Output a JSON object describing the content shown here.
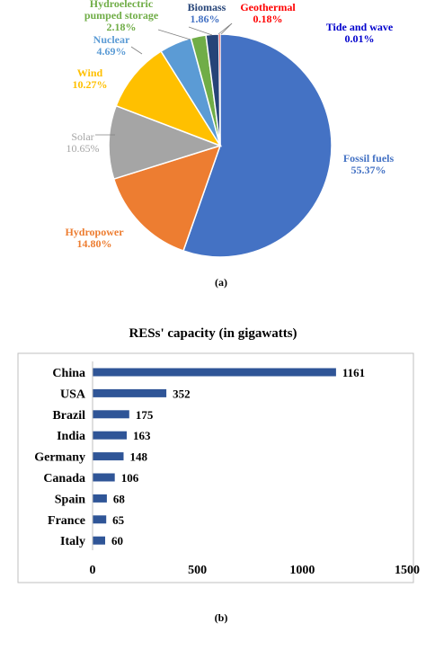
{
  "charts": [
    {
      "panel_label": "(a)",
      "chart_data": {
        "type": "pie",
        "title": "",
        "slices": [
          {
            "name": "Fossil fuels",
            "value": 55.37,
            "label": "55.37%",
            "color": "#4472c4"
          },
          {
            "name": "Hydropower",
            "value": 14.8,
            "label": "14.80%",
            "color": "#ed7d31"
          },
          {
            "name": "Solar",
            "value": 10.65,
            "label": "10.65%",
            "color": "#a5a5a5"
          },
          {
            "name": "Wind",
            "value": 10.27,
            "label": "10.27%",
            "color": "#ffc000"
          },
          {
            "name": "Nuclear",
            "value": 4.69,
            "label": "4.69%",
            "color": "#5b9bd5"
          },
          {
            "name": "Hydroelectric pumped storage",
            "value": 2.18,
            "label": "2.18%",
            "color": "#70ad47"
          },
          {
            "name": "Biomass",
            "value": 1.86,
            "label": "1.86%",
            "color": "#264478"
          },
          {
            "name": "Geothermal",
            "value": 0.18,
            "label": "0.18%",
            "color": "#ff0000"
          },
          {
            "name": "Tide and wave",
            "value": 0.01,
            "label": "0.01%",
            "color": "#0000cc"
          }
        ]
      }
    },
    {
      "panel_label": "(b)",
      "chart_data": {
        "type": "bar",
        "orientation": "horizontal",
        "title": "RESs' capacity (in gigawatts)",
        "xlabel": "",
        "ylabel": "",
        "categories": [
          "China",
          "USA",
          "Brazil",
          "India",
          "Germany",
          "Canada",
          "Spain",
          "France",
          "Italy"
        ],
        "values": [
          1161,
          352,
          175,
          163,
          148,
          106,
          68,
          65,
          60
        ],
        "xlim": [
          0,
          1500
        ],
        "xticks": [
          0,
          500,
          1000,
          1500
        ],
        "bar_color": "#2f5597",
        "grid": false,
        "legend": "none"
      }
    }
  ]
}
